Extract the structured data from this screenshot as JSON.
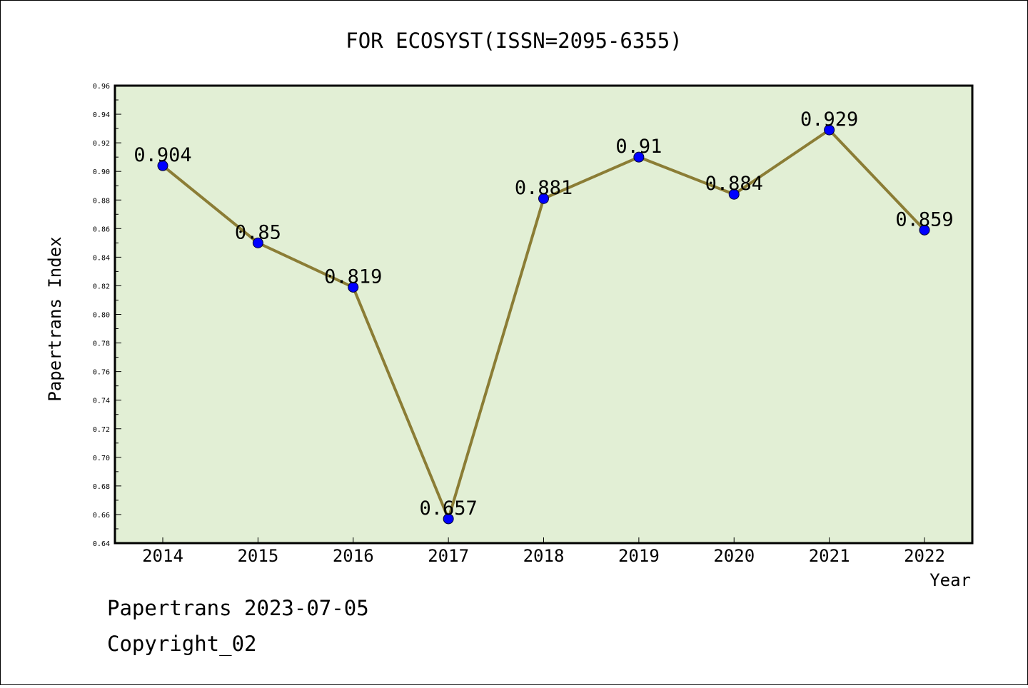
{
  "chart_data": {
    "type": "line",
    "title": "FOR ECOSYST(ISSN=2095-6355)",
    "xlabel": "Year",
    "ylabel": "Papertrans Index",
    "categories": [
      "2014",
      "2015",
      "2016",
      "2017",
      "2018",
      "2019",
      "2020",
      "2021",
      "2022"
    ],
    "series": [
      {
        "name": "Papertrans Index",
        "values": [
          0.904,
          0.85,
          0.819,
          0.657,
          0.881,
          0.91,
          0.884,
          0.929,
          0.859
        ],
        "labels": [
          "0.904",
          "0.85",
          "0.819",
          "0.657",
          "0.881",
          "0.91",
          "0.884",
          "0.929",
          "0.859"
        ]
      }
    ],
    "ylim": [
      0.64,
      0.96
    ],
    "yticks": [
      "0.64",
      "0.66",
      "0.68",
      "0.70",
      "0.72",
      "0.74",
      "0.76",
      "0.78",
      "0.80",
      "0.82",
      "0.84",
      "0.86",
      "0.88",
      "0.90",
      "0.92",
      "0.94",
      "0.96"
    ],
    "colors": {
      "plot_bg": "#e2efd5",
      "line": "#8b7d35",
      "marker": "#0000ff"
    }
  },
  "footer": {
    "line1": "Papertrans 2023-07-05",
    "line2": "Copyright_02"
  }
}
